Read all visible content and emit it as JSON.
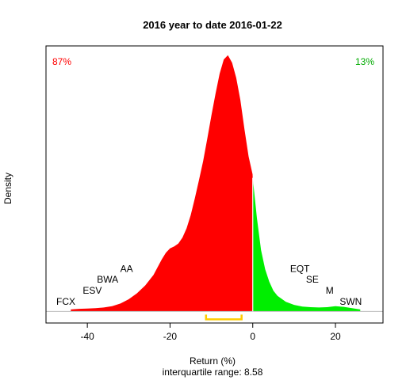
{
  "chart_data": {
    "type": "area",
    "title": "2016  year to date 2016-01-22",
    "xlabel": "Return (%)",
    "ylabel": "Density",
    "subtitle": "interquartile range: 8.58",
    "xlim": [
      -50,
      31.5
    ],
    "ylim": [
      -0.0035,
      0.0805
    ],
    "x_ticks": [
      -40,
      -20,
      0,
      20
    ],
    "x_tick_labels": [
      "-40",
      "-20",
      "0",
      "20"
    ],
    "split_at": 0,
    "left_percent": "87%",
    "right_percent": "13%",
    "colors": {
      "negative": "#ff0000",
      "positive": "#00ee00",
      "iqr": "#ffcc00",
      "baseline": "#bebebe"
    },
    "density": {
      "x": [
        -44,
        -42,
        -40,
        -38,
        -36,
        -34,
        -32,
        -30,
        -28,
        -26,
        -24,
        -22,
        -21,
        -20,
        -19,
        -18,
        -17,
        -16,
        -15,
        -14,
        -13,
        -12,
        -11,
        -10,
        -9,
        -8,
        -7,
        -6,
        -5,
        -4,
        -3,
        -2,
        -1,
        -0.05,
        0,
        1,
        2,
        3,
        4,
        5,
        6,
        8,
        10,
        12,
        14,
        16,
        18,
        20,
        22,
        24,
        26
      ],
      "y": [
        0.0006,
        0.0008,
        0.0009,
        0.001,
        0.0012,
        0.0016,
        0.0024,
        0.0037,
        0.0055,
        0.0079,
        0.0111,
        0.0158,
        0.0178,
        0.0191,
        0.0197,
        0.0206,
        0.0224,
        0.0252,
        0.0292,
        0.0343,
        0.0398,
        0.0456,
        0.0524,
        0.0594,
        0.066,
        0.0721,
        0.0764,
        0.0777,
        0.0754,
        0.0708,
        0.0641,
        0.0552,
        0.047,
        0.0416,
        0.0405,
        0.0283,
        0.0186,
        0.0128,
        0.009,
        0.0063,
        0.0047,
        0.0029,
        0.002,
        0.0015,
        0.0013,
        0.0012,
        0.0013,
        0.0016,
        0.0014,
        0.001,
        0.0006
      ]
    },
    "iqr": [
      -11.3,
      -2.7
    ],
    "annotations": [
      {
        "label": "FCX",
        "x": -45.2,
        "y": 0.002
      },
      {
        "label": "ESV",
        "x": -38.8,
        "y": 0.0054
      },
      {
        "label": "BWA",
        "x": -35.1,
        "y": 0.0088
      },
      {
        "label": "AA",
        "x": -30.5,
        "y": 0.012
      },
      {
        "label": "EQT",
        "x": 11.4,
        "y": 0.012
      },
      {
        "label": "SE",
        "x": 14.4,
        "y": 0.0088
      },
      {
        "label": "M",
        "x": 18.6,
        "y": 0.0054
      },
      {
        "label": "SWN",
        "x": 23.7,
        "y": 0.002
      }
    ]
  }
}
